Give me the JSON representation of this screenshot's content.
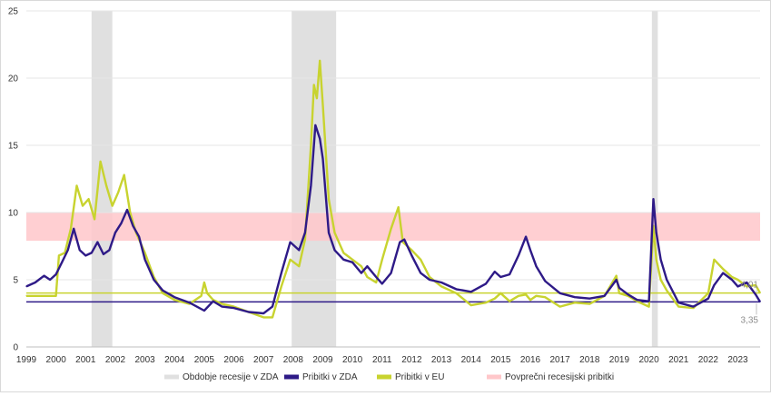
{
  "colors": {
    "recession": "#e0e0e0",
    "us": "#2e1a87",
    "eu": "#c8d32f",
    "avg_band": "#ffc7ca",
    "grid": "#e6e6e6"
  },
  "chart_data": {
    "type": "line",
    "title": "",
    "xlabel": "",
    "ylabel": "",
    "xlim": [
      1999,
      2023.75
    ],
    "ylim": [
      0,
      25
    ],
    "yticks": [
      0,
      5,
      10,
      15,
      20,
      25
    ],
    "xticks": [
      "1999",
      "2000",
      "2001",
      "2002",
      "2003",
      "2004",
      "2005",
      "2006",
      "2007",
      "2008",
      "2009",
      "2010",
      "2011",
      "2012",
      "2013",
      "2014",
      "2015",
      "2016",
      "2017",
      "2018",
      "2019",
      "2020",
      "2021",
      "2022",
      "2023"
    ],
    "grid": true,
    "legend": {
      "placement": "bottom",
      "items": [
        "Obdobje recesije v ZDA",
        "Pribitki v ZDA",
        "Pribitki v EU",
        "Povprečni recesijski pribitki"
      ]
    },
    "recessions": [
      {
        "start": 2001.2,
        "end": 2001.9
      },
      {
        "start": 2007.95,
        "end": 2009.45
      },
      {
        "start": 2020.1,
        "end": 2020.3
      }
    ],
    "avg_recession_band": {
      "low": 7.9,
      "high": 10.0
    },
    "end_labels": [
      {
        "series": "Pribitki v EU",
        "value": 4.01,
        "text": "4,01"
      },
      {
        "series": "Pribitki v ZDA",
        "value": 3.35,
        "text": "3,35"
      }
    ],
    "series": [
      {
        "name": "Pribitki v ZDA",
        "reference_level": 3.35,
        "x": [
          1999.0,
          1999.3,
          1999.6,
          1999.8,
          2000.0,
          2000.2,
          2000.4,
          2000.6,
          2000.8,
          2001.0,
          2001.2,
          2001.4,
          2001.6,
          2001.8,
          2002.0,
          2002.2,
          2002.4,
          2002.6,
          2002.8,
          2003.0,
          2003.3,
          2003.6,
          2004.0,
          2004.5,
          2005.0,
          2005.3,
          2005.6,
          2006.0,
          2006.5,
          2007.0,
          2007.3,
          2007.6,
          2007.9,
          2008.2,
          2008.4,
          2008.6,
          2008.75,
          2008.9,
          2009.0,
          2009.2,
          2009.4,
          2009.7,
          2010.0,
          2010.3,
          2010.5,
          2010.8,
          2011.0,
          2011.3,
          2011.6,
          2011.75,
          2012.0,
          2012.3,
          2012.6,
          2013.0,
          2013.5,
          2014.0,
          2014.5,
          2014.8,
          2015.0,
          2015.3,
          2015.6,
          2015.85,
          2016.0,
          2016.2,
          2016.5,
          2017.0,
          2017.5,
          2018.0,
          2018.5,
          2018.9,
          2019.0,
          2019.3,
          2019.6,
          2020.0,
          2020.15,
          2020.25,
          2020.4,
          2020.6,
          2021.0,
          2021.5,
          2022.0,
          2022.2,
          2022.5,
          2022.8,
          2023.0,
          2023.3,
          2023.6,
          2023.75
        ],
        "values": [
          4.5,
          4.8,
          5.3,
          5.0,
          5.4,
          6.3,
          7.2,
          8.8,
          7.2,
          6.8,
          7.0,
          7.8,
          6.9,
          7.2,
          8.5,
          9.2,
          10.2,
          9.0,
          8.2,
          6.5,
          5.0,
          4.2,
          3.7,
          3.3,
          2.7,
          3.4,
          3.0,
          2.9,
          2.6,
          2.5,
          3.0,
          5.5,
          7.8,
          7.2,
          8.5,
          12.0,
          16.5,
          15.5,
          14.0,
          8.5,
          7.2,
          6.5,
          6.3,
          5.5,
          6.0,
          5.2,
          4.7,
          5.5,
          7.8,
          8.0,
          6.8,
          5.5,
          5.0,
          4.8,
          4.3,
          4.1,
          4.7,
          5.6,
          5.2,
          5.4,
          6.8,
          8.2,
          7.2,
          6.0,
          4.9,
          4.0,
          3.7,
          3.6,
          3.8,
          5.0,
          4.4,
          3.9,
          3.5,
          3.4,
          11.0,
          8.5,
          6.5,
          5.0,
          3.3,
          3.0,
          3.6,
          4.6,
          5.5,
          5.0,
          4.5,
          4.8,
          3.9,
          3.35
        ]
      },
      {
        "name": "Pribitki v EU",
        "reference_level": 4.01,
        "x": [
          1999.0,
          1999.5,
          2000.0,
          2000.1,
          2000.3,
          2000.5,
          2000.7,
          2000.9,
          2001.1,
          2001.3,
          2001.5,
          2001.7,
          2001.9,
          2002.1,
          2002.3,
          2002.5,
          2002.7,
          2003.0,
          2003.3,
          2003.6,
          2004.0,
          2004.5,
          2004.9,
          2005.0,
          2005.1,
          2005.3,
          2005.6,
          2006.0,
          2006.5,
          2007.0,
          2007.3,
          2007.6,
          2007.9,
          2008.2,
          2008.4,
          2008.6,
          2008.7,
          2008.8,
          2008.9,
          2009.0,
          2009.2,
          2009.4,
          2009.7,
          2010.0,
          2010.3,
          2010.5,
          2010.8,
          2011.0,
          2011.3,
          2011.55,
          2011.7,
          2012.0,
          2012.3,
          2012.6,
          2013.0,
          2013.5,
          2014.0,
          2014.5,
          2014.8,
          2015.0,
          2015.3,
          2015.6,
          2015.85,
          2016.0,
          2016.2,
          2016.5,
          2017.0,
          2017.5,
          2018.0,
          2018.5,
          2018.9,
          2019.0,
          2019.3,
          2019.6,
          2020.0,
          2020.15,
          2020.25,
          2020.4,
          2020.6,
          2021.0,
          2021.5,
          2022.0,
          2022.2,
          2022.5,
          2022.8,
          2023.0,
          2023.3,
          2023.6,
          2023.75
        ],
        "values": [
          3.8,
          3.8,
          3.8,
          6.8,
          7.0,
          8.8,
          12.0,
          10.5,
          11.0,
          9.5,
          13.8,
          12.0,
          10.5,
          11.5,
          12.8,
          10.0,
          8.5,
          7.0,
          5.2,
          4.0,
          3.5,
          3.2,
          3.8,
          4.8,
          4.0,
          3.5,
          3.2,
          3.0,
          2.6,
          2.2,
          2.2,
          4.5,
          6.5,
          6.0,
          8.0,
          15.0,
          19.5,
          18.5,
          21.3,
          18.0,
          11.0,
          8.5,
          7.0,
          6.5,
          6.0,
          5.2,
          4.8,
          6.5,
          8.8,
          10.4,
          7.8,
          7.2,
          6.5,
          5.2,
          4.5,
          4.0,
          3.1,
          3.3,
          3.6,
          4.0,
          3.4,
          3.8,
          3.9,
          3.5,
          3.8,
          3.7,
          3.0,
          3.3,
          3.2,
          3.8,
          5.3,
          4.0,
          3.8,
          3.4,
          3.0,
          9.0,
          6.5,
          5.0,
          4.2,
          3.0,
          2.9,
          4.0,
          6.5,
          5.8,
          5.2,
          5.0,
          4.5,
          4.6,
          4.01
        ]
      }
    ]
  }
}
